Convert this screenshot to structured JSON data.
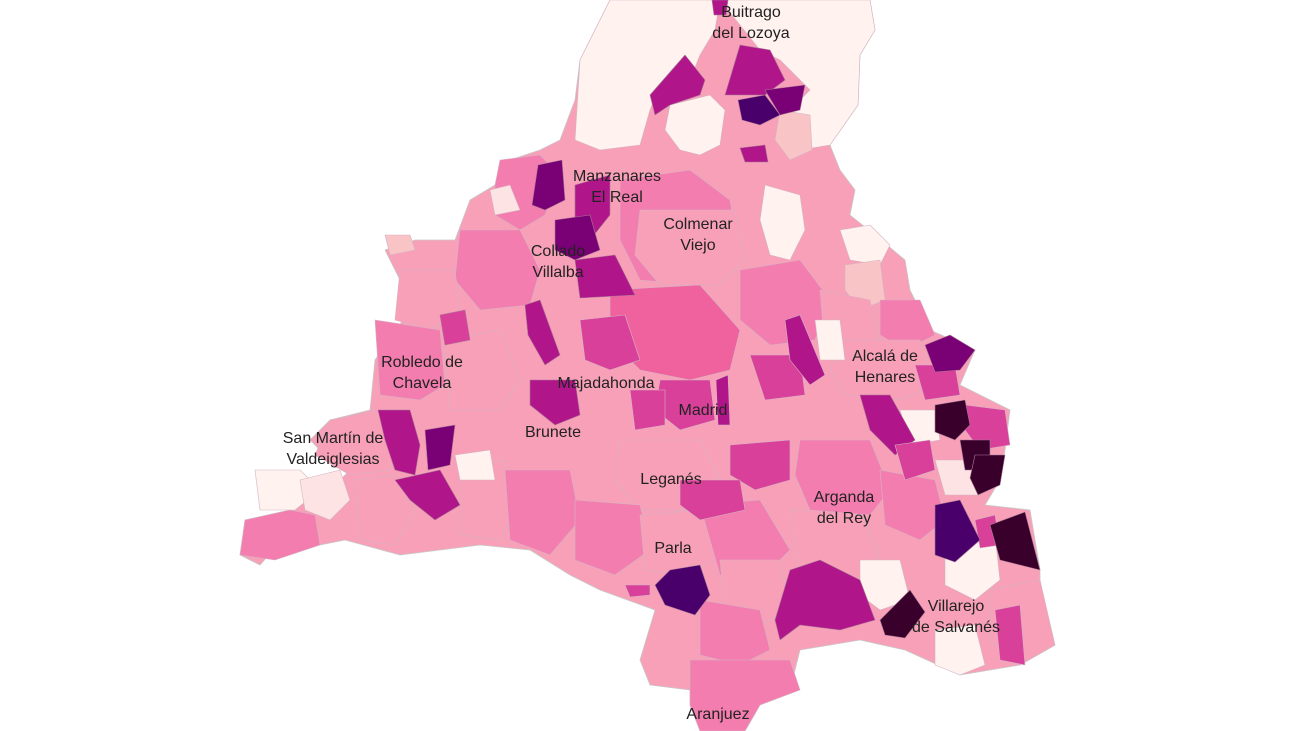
{
  "colors": {
    "background": "#ffffff",
    "scale": [
      "#fff2ef",
      "#f9c4c6",
      "#f7a0b8",
      "#f37dae",
      "#f0629e",
      "#d9409a",
      "#b0168a",
      "#7a0075",
      "#4a006a",
      "#3a002c"
    ]
  },
  "map": {
    "labels": {
      "buitrago": [
        "Buitrago",
        "del Lozoya"
      ],
      "manzanares": [
        "Manzanares",
        "El Real"
      ],
      "colmenar": [
        "Colmenar",
        "Viejo"
      ],
      "collado": [
        "Collado",
        "Villalba"
      ],
      "robledo": [
        "Robledo de",
        "Chavela"
      ],
      "alcala": [
        "Alcalá de",
        "Henares"
      ],
      "majadahonda": [
        "Majadahonda"
      ],
      "madrid": [
        "Madrid"
      ],
      "sanmartin": [
        "San Martín de",
        "Valdeiglesias"
      ],
      "brunete": [
        "Brunete"
      ],
      "leganes": [
        "Leganés"
      ],
      "arganda": [
        "Arganda",
        "del Rey"
      ],
      "parla": [
        "Parla"
      ],
      "villarejo": [
        "Villarejo",
        "de Salvanés"
      ],
      "aranjuez": [
        "Aranjuez"
      ]
    }
  }
}
